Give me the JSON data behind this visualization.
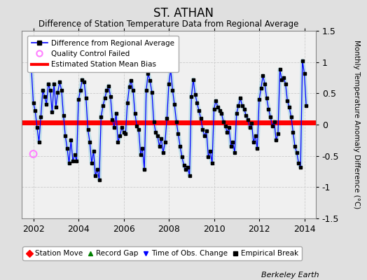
{
  "title": "ST. ATHAN",
  "subtitle": "Difference of Station Temperature Data from Regional Average",
  "ylabel": "Monthly Temperature Anomaly Difference (°C)",
  "credit": "Berkeley Earth",
  "xlim": [
    2001.5,
    2014.5
  ],
  "ylim": [
    -1.5,
    1.5
  ],
  "yticks": [
    -1.5,
    -1.0,
    -0.5,
    0.0,
    0.5,
    1.0,
    1.5
  ],
  "ytick_labels": [
    "-1.5",
    "-1",
    "-0.5",
    "0",
    "0.5",
    "1",
    "1.5"
  ],
  "xticks": [
    2002,
    2004,
    2006,
    2008,
    2010,
    2012,
    2014
  ],
  "bias_line_y": 0.03,
  "fig_facecolor": "#e0e0e0",
  "plot_facecolor": "#f0f0f0",
  "grid_color": "#cccccc",
  "qc_fail_x": [
    2002.0
  ],
  "qc_fail_y": [
    -0.47
  ],
  "data_x": [
    2001.917,
    2002.0,
    2002.083,
    2002.167,
    2002.25,
    2002.333,
    2002.417,
    2002.5,
    2002.583,
    2002.667,
    2002.75,
    2002.833,
    2002.917,
    2003.0,
    2003.083,
    2003.167,
    2003.25,
    2003.333,
    2003.417,
    2003.5,
    2003.583,
    2003.667,
    2003.75,
    2003.833,
    2003.917,
    2004.0,
    2004.083,
    2004.167,
    2004.25,
    2004.333,
    2004.417,
    2004.5,
    2004.583,
    2004.667,
    2004.75,
    2004.833,
    2004.917,
    2005.0,
    2005.083,
    2005.167,
    2005.25,
    2005.333,
    2005.417,
    2005.5,
    2005.583,
    2005.667,
    2005.75,
    2005.833,
    2005.917,
    2006.0,
    2006.083,
    2006.167,
    2006.25,
    2006.333,
    2006.417,
    2006.5,
    2006.583,
    2006.667,
    2006.75,
    2006.833,
    2006.917,
    2007.0,
    2007.083,
    2007.167,
    2007.25,
    2007.333,
    2007.417,
    2007.5,
    2007.583,
    2007.667,
    2007.75,
    2007.833,
    2007.917,
    2008.0,
    2008.083,
    2008.167,
    2008.25,
    2008.333,
    2008.417,
    2008.5,
    2008.583,
    2008.667,
    2008.75,
    2008.833,
    2008.917,
    2009.0,
    2009.083,
    2009.167,
    2009.25,
    2009.333,
    2009.417,
    2009.5,
    2009.583,
    2009.667,
    2009.75,
    2009.833,
    2009.917,
    2010.0,
    2010.083,
    2010.167,
    2010.25,
    2010.333,
    2010.417,
    2010.5,
    2010.583,
    2010.667,
    2010.75,
    2010.833,
    2010.917,
    2011.0,
    2011.083,
    2011.167,
    2011.25,
    2011.333,
    2011.417,
    2011.5,
    2011.583,
    2011.667,
    2011.75,
    2011.833,
    2011.917,
    2012.0,
    2012.083,
    2012.167,
    2012.25,
    2012.333,
    2012.417,
    2012.5,
    2012.583,
    2012.667,
    2012.75,
    2012.833,
    2012.917,
    2013.0,
    2013.083,
    2013.167,
    2013.25,
    2013.333,
    2013.417,
    2013.5,
    2013.583,
    2013.667,
    2013.75,
    2013.833,
    2013.917,
    2014.0,
    2014.083
  ],
  "data_y": [
    0.88,
    0.35,
    0.22,
    -0.05,
    -0.28,
    0.12,
    0.55,
    0.45,
    0.33,
    0.65,
    0.55,
    0.2,
    0.65,
    0.28,
    0.52,
    0.68,
    0.55,
    0.15,
    -0.18,
    -0.38,
    -0.62,
    -0.25,
    -0.58,
    -0.48,
    -0.58,
    0.4,
    0.55,
    0.72,
    0.68,
    0.42,
    -0.08,
    -0.28,
    -0.62,
    -0.42,
    -0.82,
    -0.72,
    -0.88,
    0.12,
    0.3,
    0.42,
    0.55,
    0.62,
    0.45,
    0.08,
    -0.05,
    0.18,
    -0.28,
    -0.18,
    -0.05,
    -0.12,
    -0.15,
    0.35,
    0.6,
    0.7,
    0.55,
    0.18,
    -0.02,
    -0.08,
    -0.48,
    -0.38,
    -0.72,
    0.55,
    0.82,
    0.7,
    0.52,
    0.05,
    -0.12,
    -0.18,
    -0.35,
    -0.22,
    -0.45,
    -0.28,
    0.1,
    0.65,
    0.88,
    0.55,
    0.32,
    0.05,
    -0.15,
    -0.35,
    -0.52,
    -0.65,
    -0.72,
    -0.68,
    -0.82,
    0.45,
    0.72,
    0.48,
    0.35,
    0.22,
    0.1,
    -0.08,
    -0.18,
    -0.1,
    -0.52,
    -0.42,
    -0.62,
    0.25,
    0.38,
    0.28,
    0.22,
    0.18,
    0.05,
    -0.02,
    -0.12,
    -0.05,
    -0.35,
    -0.28,
    -0.45,
    0.18,
    0.3,
    0.42,
    0.3,
    0.25,
    0.15,
    0.08,
    -0.05,
    0.02,
    -0.28,
    -0.18,
    -0.38,
    0.4,
    0.58,
    0.78,
    0.65,
    0.42,
    0.25,
    0.12,
    -0.02,
    0.05,
    -0.25,
    -0.15,
    0.88,
    0.72,
    0.75,
    0.65,
    0.38,
    0.28,
    0.12,
    -0.12,
    -0.35,
    -0.45,
    -0.62,
    -0.68,
    1.02,
    0.82,
    0.3
  ],
  "line_color": "blue",
  "line_width": 0.9,
  "line_alpha_bg": 0.25,
  "marker_color": "black",
  "marker_size": 4,
  "bias_color": "red",
  "bias_linewidth": 5,
  "legend1_items": [
    {
      "label": "Difference from Regional Average",
      "color": "blue",
      "marker": "s",
      "markercolor": "black"
    },
    {
      "label": "Quality Control Failed",
      "color": "pink",
      "marker": "o"
    },
    {
      "label": "Estimated Station Mean Bias",
      "color": "red",
      "marker": "none"
    }
  ],
  "legend2_items": [
    {
      "label": "Station Move",
      "color": "red",
      "marker": "D"
    },
    {
      "label": "Record Gap",
      "color": "green",
      "marker": "^"
    },
    {
      "label": "Time of Obs. Change",
      "color": "blue",
      "marker": "v"
    },
    {
      "label": "Empirical Break",
      "color": "black",
      "marker": "s"
    }
  ]
}
